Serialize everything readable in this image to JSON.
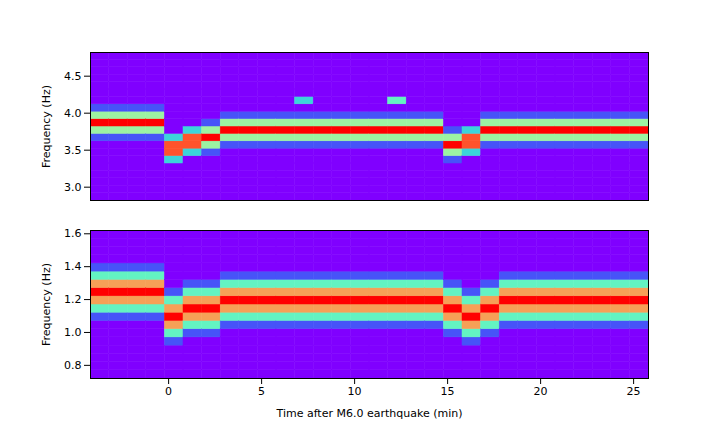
{
  "chart_data": [
    {
      "type": "heatmap",
      "ylabel": "Frequency (Hz)",
      "tick_labels": "y",
      "xlim": [
        -4.2,
        25.8
      ],
      "ylim": [
        2.82,
        4.82
      ],
      "yticks": [
        {
          "value": 3.0,
          "label": "3.0"
        },
        {
          "value": 3.5,
          "label": "3.5"
        },
        {
          "value": 4.0,
          "label": "4.0"
        },
        {
          "value": 4.5,
          "label": "4.5"
        }
      ],
      "zlim": [
        0,
        9
      ],
      "colors": [
        "#8000ff",
        "#1996f3",
        "#4df3ce",
        "#b2f396",
        "#ff964f",
        "#ff0000"
      ],
      "x_bins": [
        -4.2,
        -3.2,
        -2.2,
        -1.2,
        -0.2,
        0.8,
        1.8,
        2.8,
        3.8,
        4.8,
        5.8,
        6.8,
        7.8,
        8.8,
        9.8,
        10.8,
        11.8,
        12.8,
        13.8,
        14.8,
        15.8,
        16.8,
        17.8,
        18.8,
        19.8,
        20.8,
        21.8,
        22.8,
        23.8,
        24.8,
        25.8
      ],
      "y_bins": [
        2.82,
        2.92,
        3.02,
        3.12,
        3.22,
        3.32,
        3.42,
        3.52,
        3.62,
        3.72,
        3.82,
        3.92,
        4.02,
        4.12,
        4.22,
        4.32,
        4.42,
        4.52,
        4.62,
        4.72,
        4.82
      ],
      "cells": [
        [
          0,
          0,
          0,
          0,
          0,
          0,
          0,
          0,
          1,
          5,
          9,
          5,
          1,
          0,
          0,
          0,
          0,
          0,
          0,
          0
        ],
        [
          0,
          0,
          0,
          0,
          0,
          0,
          0,
          0,
          1,
          5,
          9,
          5,
          1,
          0,
          0,
          0,
          0,
          0,
          0,
          0
        ],
        [
          0,
          0,
          0,
          0,
          0,
          0,
          0,
          0,
          1,
          5,
          9,
          5,
          1,
          0,
          0,
          0,
          0,
          0,
          0,
          0
        ],
        [
          0,
          0,
          0,
          0,
          0,
          0,
          0,
          0,
          1,
          5,
          9,
          5,
          1,
          0,
          0,
          0,
          0,
          0,
          0,
          0
        ],
        [
          0,
          0,
          0,
          0,
          0,
          3,
          8,
          8,
          3,
          0,
          0,
          0,
          0,
          0,
          0,
          0,
          0,
          0,
          0,
          0
        ],
        [
          0,
          0,
          0,
          0,
          0,
          0,
          3,
          8,
          8,
          3,
          0,
          0,
          0,
          0,
          0,
          0,
          0,
          0,
          0,
          0
        ],
        [
          0,
          0,
          0,
          0,
          0,
          0,
          1,
          5,
          9,
          5,
          1,
          0,
          0,
          0,
          0,
          0,
          0,
          0,
          0,
          0
        ],
        [
          0,
          0,
          0,
          0,
          0,
          0,
          0,
          1,
          5,
          9,
          5,
          1,
          0,
          0,
          0,
          0,
          0,
          0,
          0,
          0
        ],
        [
          0,
          0,
          0,
          0,
          0,
          0,
          0,
          1,
          5,
          9,
          5,
          1,
          0,
          0,
          0,
          0,
          0,
          0,
          0,
          0
        ],
        [
          0,
          0,
          0,
          0,
          0,
          0,
          0,
          1,
          5,
          9,
          5,
          1,
          0,
          0,
          0,
          0,
          0,
          0,
          0,
          0
        ],
        [
          0,
          0,
          0,
          0,
          0,
          0,
          0,
          1,
          5,
          9,
          5,
          1,
          0,
          0,
          0,
          0,
          0,
          0,
          0,
          0
        ],
        [
          0,
          0,
          0,
          0,
          0,
          0,
          0,
          1,
          5,
          9,
          5,
          1,
          0,
          3,
          0,
          0,
          0,
          0,
          0,
          0
        ],
        [
          0,
          0,
          0,
          0,
          0,
          0,
          0,
          1,
          5,
          9,
          5,
          1,
          0,
          0,
          0,
          0,
          0,
          0,
          0,
          0
        ],
        [
          0,
          0,
          0,
          0,
          0,
          0,
          0,
          1,
          5,
          9,
          5,
          1,
          0,
          0,
          0,
          0,
          0,
          0,
          0,
          0
        ],
        [
          0,
          0,
          0,
          0,
          0,
          0,
          0,
          1,
          5,
          9,
          5,
          1,
          0,
          0,
          0,
          0,
          0,
          0,
          0,
          0
        ],
        [
          0,
          0,
          0,
          0,
          0,
          0,
          0,
          1,
          5,
          9,
          5,
          1,
          0,
          0,
          0,
          0,
          0,
          0,
          0,
          0
        ],
        [
          0,
          0,
          0,
          0,
          0,
          0,
          0,
          1,
          5,
          9,
          5,
          1,
          0,
          4,
          0,
          0,
          0,
          0,
          0,
          0
        ],
        [
          0,
          0,
          0,
          0,
          0,
          0,
          0,
          1,
          5,
          9,
          5,
          1,
          0,
          0,
          0,
          0,
          0,
          0,
          0,
          0
        ],
        [
          0,
          0,
          0,
          0,
          0,
          0,
          0,
          1,
          5,
          9,
          5,
          1,
          0,
          0,
          0,
          0,
          0,
          0,
          0,
          0
        ],
        [
          0,
          0,
          0,
          0,
          0,
          1,
          5,
          9,
          5,
          1,
          0,
          0,
          0,
          0,
          0,
          0,
          0,
          0,
          0,
          0
        ],
        [
          0,
          0,
          0,
          0,
          0,
          0,
          3,
          8,
          8,
          3,
          0,
          0,
          0,
          0,
          0,
          0,
          0,
          0,
          0,
          0
        ],
        [
          0,
          0,
          0,
          0,
          0,
          0,
          0,
          1,
          5,
          9,
          5,
          1,
          0,
          0,
          0,
          0,
          0,
          0,
          0,
          0
        ],
        [
          0,
          0,
          0,
          0,
          0,
          0,
          0,
          1,
          5,
          9,
          5,
          1,
          0,
          0,
          0,
          0,
          0,
          0,
          0,
          0
        ],
        [
          0,
          0,
          0,
          0,
          0,
          0,
          0,
          1,
          5,
          9,
          5,
          1,
          0,
          0,
          0,
          0,
          0,
          0,
          0,
          0
        ],
        [
          0,
          0,
          0,
          0,
          0,
          0,
          0,
          1,
          5,
          9,
          5,
          1,
          0,
          0,
          0,
          0,
          0,
          0,
          0,
          0
        ],
        [
          0,
          0,
          0,
          0,
          0,
          0,
          0,
          1,
          5,
          9,
          5,
          1,
          0,
          0,
          0,
          0,
          0,
          0,
          0,
          0
        ],
        [
          0,
          0,
          0,
          0,
          0,
          0,
          0,
          1,
          5,
          9,
          5,
          1,
          0,
          0,
          0,
          0,
          0,
          0,
          0,
          0
        ],
        [
          0,
          0,
          0,
          0,
          0,
          0,
          0,
          1,
          5,
          9,
          5,
          1,
          0,
          0,
          0,
          0,
          0,
          0,
          0,
          0
        ],
        [
          0,
          0,
          0,
          0,
          0,
          0,
          0,
          1,
          5,
          9,
          5,
          1,
          0,
          0,
          0,
          0,
          0,
          0,
          0,
          0
        ],
        [
          0,
          0,
          0,
          0,
          0,
          0,
          0,
          1,
          5,
          9,
          5,
          1,
          0,
          0,
          0,
          0,
          0,
          0,
          0,
          0
        ]
      ]
    },
    {
      "type": "heatmap",
      "xlabel": "Time after M6.0 earthquake (min)",
      "ylabel": "Frequency (Hz)",
      "xlim": [
        -4.2,
        25.8
      ],
      "ylim": [
        0.72,
        1.62
      ],
      "xticks": [
        0,
        5,
        10,
        15,
        20,
        25
      ],
      "yticks": [
        {
          "value": 0.8,
          "label": "0.8"
        },
        {
          "value": 1.0,
          "label": "1.0"
        },
        {
          "value": 1.2,
          "label": "1.2"
        },
        {
          "value": 1.4,
          "label": "1.4"
        },
        {
          "value": 1.6,
          "label": "1.6"
        }
      ],
      "zlim": [
        0,
        9
      ],
      "colors": [
        "#8000ff",
        "#1996f3",
        "#4df3ce",
        "#b2f396",
        "#ff964f",
        "#ff0000"
      ],
      "x_bins": [
        -4.2,
        -3.2,
        -2.2,
        -1.2,
        -0.2,
        0.8,
        1.8,
        2.8,
        3.8,
        4.8,
        5.8,
        6.8,
        7.8,
        8.8,
        9.8,
        10.8,
        11.8,
        12.8,
        13.8,
        14.8,
        15.8,
        16.8,
        17.8,
        18.8,
        19.8,
        20.8,
        21.8,
        22.8,
        23.8,
        24.8,
        25.8
      ],
      "y_bins": [
        0.72,
        0.77,
        0.82,
        0.87,
        0.92,
        0.97,
        1.02,
        1.07,
        1.12,
        1.17,
        1.22,
        1.27,
        1.32,
        1.37,
        1.42,
        1.47,
        1.52,
        1.57,
        1.62
      ],
      "cells": [
        [
          0,
          0,
          0,
          0,
          0,
          0,
          0,
          1,
          4,
          7,
          9,
          7,
          4,
          1,
          0,
          0,
          0,
          0
        ],
        [
          0,
          0,
          0,
          0,
          0,
          0,
          0,
          1,
          4,
          7,
          9,
          7,
          4,
          1,
          0,
          0,
          0,
          0
        ],
        [
          0,
          0,
          0,
          0,
          0,
          0,
          0,
          1,
          4,
          7,
          9,
          7,
          4,
          1,
          0,
          0,
          0,
          0
        ],
        [
          0,
          0,
          0,
          0,
          0,
          0,
          0,
          1,
          4,
          7,
          9,
          7,
          4,
          1,
          0,
          0,
          0,
          0
        ],
        [
          0,
          0,
          0,
          0,
          1,
          4,
          7,
          9,
          7,
          4,
          1,
          0,
          0,
          0,
          0,
          0,
          0,
          0
        ],
        [
          0,
          0,
          0,
          0,
          0,
          1,
          4,
          7,
          9,
          7,
          4,
          1,
          0,
          0,
          0,
          0,
          0,
          0
        ],
        [
          0,
          0,
          0,
          0,
          0,
          1,
          4,
          7,
          9,
          7,
          4,
          1,
          0,
          0,
          0,
          0,
          0,
          0
        ],
        [
          0,
          0,
          0,
          0,
          0,
          0,
          1,
          4,
          7,
          9,
          7,
          4,
          1,
          0,
          0,
          0,
          0,
          0
        ],
        [
          0,
          0,
          0,
          0,
          0,
          0,
          1,
          4,
          7,
          9,
          7,
          4,
          1,
          0,
          0,
          0,
          0,
          0
        ],
        [
          0,
          0,
          0,
          0,
          0,
          0,
          1,
          4,
          7,
          9,
          7,
          4,
          1,
          0,
          0,
          0,
          0,
          0
        ],
        [
          0,
          0,
          0,
          0,
          0,
          0,
          1,
          4,
          7,
          9,
          7,
          4,
          1,
          0,
          0,
          0,
          0,
          0
        ],
        [
          0,
          0,
          0,
          0,
          0,
          0,
          1,
          4,
          7,
          9,
          7,
          4,
          1,
          0,
          0,
          0,
          0,
          0
        ],
        [
          0,
          0,
          0,
          0,
          0,
          0,
          1,
          4,
          7,
          9,
          7,
          4,
          1,
          0,
          0,
          0,
          0,
          0
        ],
        [
          0,
          0,
          0,
          0,
          0,
          0,
          1,
          4,
          7,
          9,
          7,
          4,
          1,
          0,
          0,
          0,
          0,
          0
        ],
        [
          0,
          0,
          0,
          0,
          0,
          0,
          1,
          4,
          7,
          9,
          7,
          4,
          1,
          0,
          0,
          0,
          0,
          0
        ],
        [
          0,
          0,
          0,
          0,
          0,
          0,
          1,
          4,
          7,
          9,
          7,
          4,
          1,
          0,
          0,
          0,
          0,
          0
        ],
        [
          0,
          0,
          0,
          0,
          0,
          0,
          1,
          4,
          7,
          9,
          7,
          4,
          1,
          0,
          0,
          0,
          0,
          0
        ],
        [
          0,
          0,
          0,
          0,
          0,
          0,
          1,
          4,
          7,
          9,
          7,
          4,
          1,
          0,
          0,
          0,
          0,
          0
        ],
        [
          0,
          0,
          0,
          0,
          0,
          0,
          1,
          4,
          7,
          9,
          7,
          4,
          1,
          0,
          0,
          0,
          0,
          0
        ],
        [
          0,
          0,
          0,
          0,
          0,
          1,
          4,
          7,
          9,
          7,
          4,
          1,
          0,
          0,
          0,
          0,
          0,
          0
        ],
        [
          0,
          0,
          0,
          0,
          1,
          4,
          7,
          9,
          7,
          4,
          1,
          0,
          0,
          0,
          0,
          0,
          0,
          0
        ],
        [
          0,
          0,
          0,
          0,
          0,
          1,
          4,
          7,
          9,
          7,
          4,
          1,
          0,
          0,
          0,
          0,
          0,
          0
        ],
        [
          0,
          0,
          0,
          0,
          0,
          0,
          1,
          4,
          7,
          9,
          7,
          4,
          1,
          0,
          0,
          0,
          0,
          0
        ],
        [
          0,
          0,
          0,
          0,
          0,
          0,
          1,
          4,
          7,
          9,
          7,
          4,
          1,
          0,
          0,
          0,
          0,
          0
        ],
        [
          0,
          0,
          0,
          0,
          0,
          0,
          1,
          4,
          7,
          9,
          7,
          4,
          1,
          0,
          0,
          0,
          0,
          0
        ],
        [
          0,
          0,
          0,
          0,
          0,
          0,
          1,
          4,
          7,
          9,
          7,
          4,
          1,
          0,
          0,
          0,
          0,
          0
        ],
        [
          0,
          0,
          0,
          0,
          0,
          0,
          1,
          4,
          7,
          9,
          7,
          4,
          1,
          0,
          0,
          0,
          0,
          0
        ],
        [
          0,
          0,
          0,
          0,
          0,
          0,
          1,
          4,
          7,
          9,
          7,
          4,
          1,
          0,
          0,
          0,
          0,
          0
        ],
        [
          0,
          0,
          0,
          0,
          0,
          0,
          1,
          4,
          7,
          9,
          7,
          4,
          1,
          0,
          0,
          0,
          0,
          0
        ],
        [
          0,
          0,
          0,
          0,
          0,
          0,
          1,
          4,
          7,
          9,
          7,
          4,
          1,
          0,
          0,
          0,
          0,
          0
        ]
      ]
    }
  ]
}
